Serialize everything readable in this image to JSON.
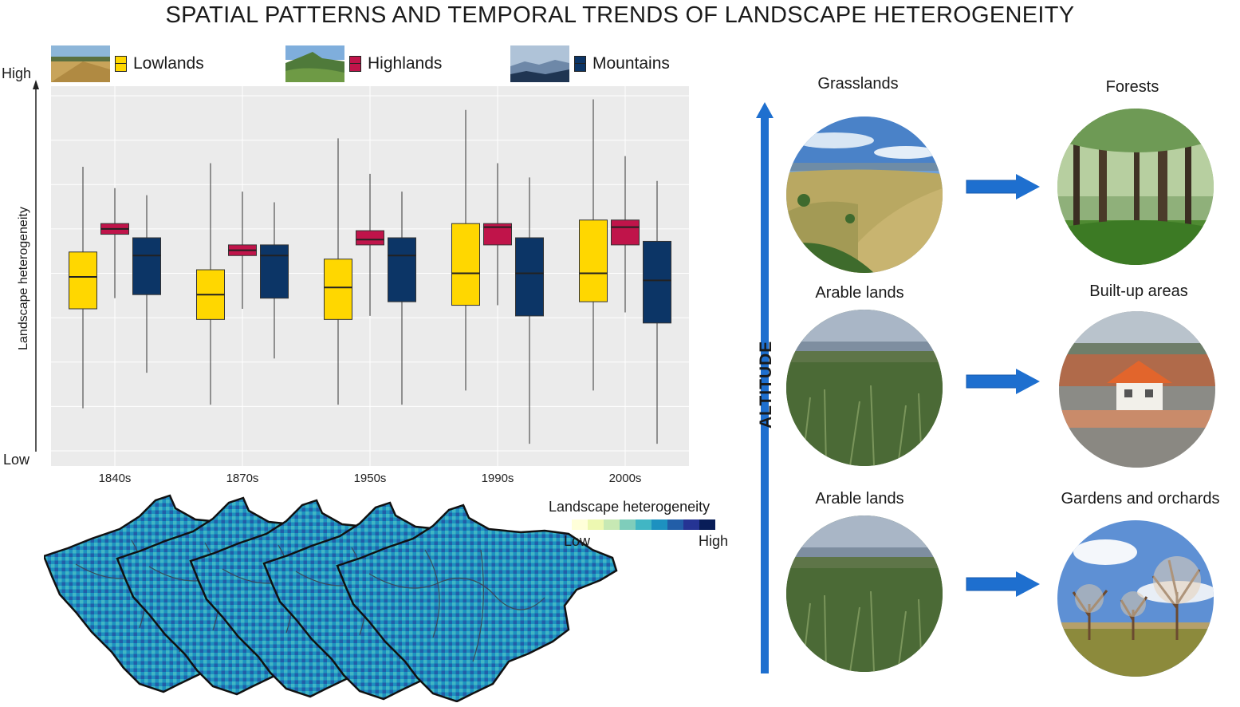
{
  "title": "SPATIAL PATTERNS AND TEMPORAL TRENDS OF LANDSCAPE HETEROGENEITY",
  "legend": [
    {
      "label": "Lowlands",
      "color": "#FFD700"
    },
    {
      "label": "Highlands",
      "color": "#C0144A"
    },
    {
      "label": "Mountains",
      "color": "#0C3566"
    }
  ],
  "axis": {
    "high": "High",
    "low": "Low",
    "ylabel": "Landscape heterogeneity"
  },
  "chart_data": {
    "type": "box",
    "categories": [
      "1840s",
      "1870s",
      "1950s",
      "1990s",
      "2000s"
    ],
    "ylabel": "Landscape heterogeneity",
    "ylim": [
      0,
      100
    ],
    "series": [
      {
        "name": "Lowlands",
        "color": "#FFD700",
        "boxes": [
          [
            12,
            40,
            49,
            56,
            80
          ],
          [
            13,
            37,
            44,
            51,
            81
          ],
          [
            13,
            37,
            46,
            54,
            88
          ],
          [
            17,
            41,
            50,
            64,
            96
          ],
          [
            17,
            42,
            50,
            65,
            99
          ]
        ]
      },
      {
        "name": "Highlands",
        "color": "#C0144A",
        "boxes": [
          [
            43,
            61,
            62.5,
            64,
            74
          ],
          [
            40,
            55,
            56.5,
            58,
            73
          ],
          [
            38,
            58,
            59.5,
            62,
            78
          ],
          [
            41,
            58,
            63,
            64,
            81
          ],
          [
            39,
            58,
            63,
            65,
            83
          ]
        ]
      },
      {
        "name": "Mountains",
        "color": "#0C3566",
        "boxes": [
          [
            22,
            44,
            55,
            60,
            72
          ],
          [
            26,
            43,
            55,
            58,
            70
          ],
          [
            13,
            42,
            55,
            60,
            73
          ],
          [
            2,
            38,
            50,
            60,
            77
          ],
          [
            2,
            36,
            48,
            59,
            76
          ]
        ]
      }
    ]
  },
  "map_legend": {
    "title": "Landscape heterogeneity",
    "low": "Low",
    "high": "High",
    "colors": [
      "#FFFFD9",
      "#EDF8B1",
      "#C7E9B4",
      "#7FCDBB",
      "#41B6C4",
      "#1D91C0",
      "#225EA8",
      "#253494",
      "#081D58"
    ]
  },
  "altitude_label": "ALTITUDE",
  "transitions": [
    {
      "from": "Grasslands",
      "to": "Forests"
    },
    {
      "from": "Arable lands",
      "to": "Built-up areas"
    },
    {
      "from": "Arable lands",
      "to": "Gardens and orchards"
    }
  ]
}
